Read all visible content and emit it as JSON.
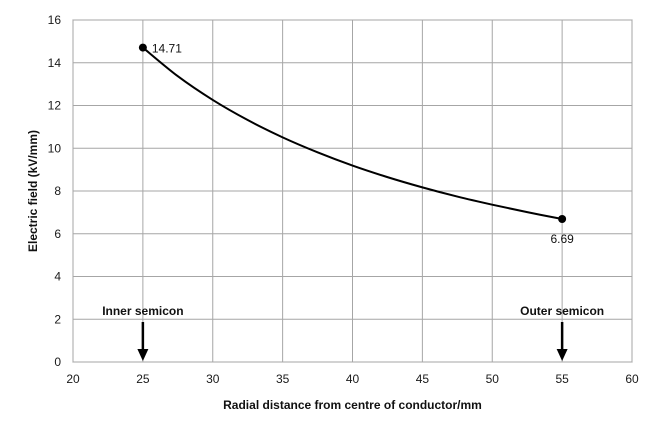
{
  "chart_data": {
    "type": "line",
    "title": "",
    "xlabel": "Radial distance from centre of conductor/mm",
    "ylabel": "Electric field (kV/mm)",
    "xlim": [
      20,
      60
    ],
    "ylim": [
      0,
      16
    ],
    "x_ticks": [
      "20",
      "25",
      "30",
      "35",
      "40",
      "45",
      "50",
      "55",
      "60"
    ],
    "y_ticks": [
      "0",
      "2",
      "4",
      "6",
      "8",
      "10",
      "12",
      "14",
      "16"
    ],
    "grid": true,
    "legend": "none",
    "series": [
      {
        "x": [
          25,
          27.5,
          30,
          32.5,
          35,
          37.5,
          40,
          42.5,
          45,
          47.5,
          50,
          52.5,
          55
        ],
        "y": [
          14.71,
          13.37,
          12.26,
          11.32,
          10.51,
          9.81,
          9.19,
          8.65,
          8.17,
          7.74,
          7.36,
          7.01,
          6.69
        ],
        "color": "#000000"
      }
    ],
    "endpoint_labels": [
      {
        "x": 25,
        "y": 14.71,
        "text": "14.71"
      },
      {
        "x": 55,
        "y": 6.69,
        "text": "6.69"
      }
    ],
    "annotations": [
      {
        "x": 25,
        "text": "Inner semicon",
        "arrow": "down"
      },
      {
        "x": 55,
        "text": "Outer semicon",
        "arrow": "down"
      }
    ]
  }
}
